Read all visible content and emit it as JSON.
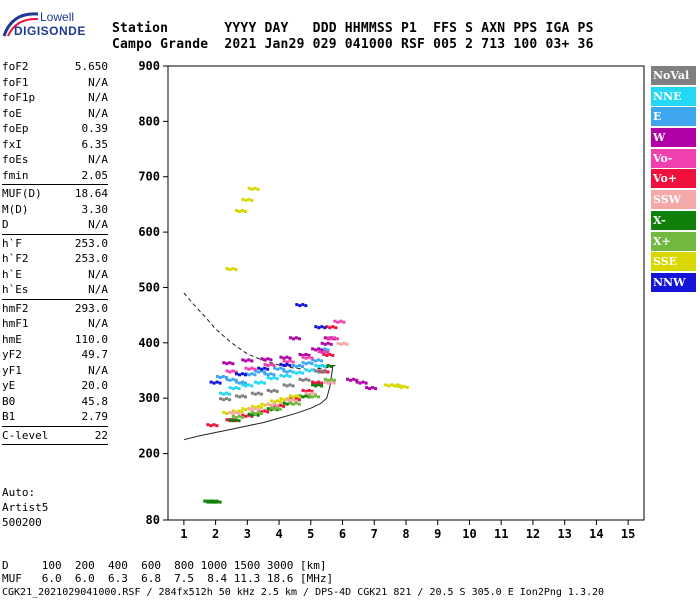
{
  "logo": {
    "line1": "Lowell",
    "line2": "DIGISONDE"
  },
  "header": {
    "line1": "Station       YYYY DAY   DDD HHMMSS P1  FFS S AXN PPS IGA PS",
    "line2": "Campo Grande  2021 Jan29 029 041000 RSF 005 2 713 100 03+ 36"
  },
  "params": [
    {
      "k": "foF2",
      "v": "5.650"
    },
    {
      "k": "foF1",
      "v": "N/A"
    },
    {
      "k": "foF1p",
      "v": "N/A"
    },
    {
      "k": "foE",
      "v": "N/A"
    },
    {
      "k": "foEp",
      "v": "0.39"
    },
    {
      "k": "fxI",
      "v": "6.35"
    },
    {
      "k": "foEs",
      "v": "N/A"
    },
    {
      "k": "fmin",
      "v": "2.05"
    }
  ],
  "params2": [
    {
      "k": "MUF(D)",
      "v": "18.64"
    },
    {
      "k": "M(D)",
      "v": "3.30"
    },
    {
      "k": "D",
      "v": "N/A"
    }
  ],
  "params3": [
    {
      "k": "h`F",
      "v": "253.0"
    },
    {
      "k": "h`F2",
      "v": "253.0"
    },
    {
      "k": "h`E",
      "v": "N/A"
    },
    {
      "k": "h`Es",
      "v": "N/A"
    }
  ],
  "params4": [
    {
      "k": "hmF2",
      "v": "293.0"
    },
    {
      "k": "hmF1",
      "v": "N/A"
    },
    {
      "k": "hmE",
      "v": "110.0"
    },
    {
      "k": "yF2",
      "v": "49.7"
    },
    {
      "k": "yF1",
      "v": "N/A"
    },
    {
      "k": "yE",
      "v": "20.0"
    },
    {
      "k": "B0",
      "v": "45.8"
    },
    {
      "k": "B1",
      "v": "2.79"
    }
  ],
  "params5": [
    {
      "k": "C-level",
      "v": "22"
    }
  ],
  "auto": {
    "l1": "Auto:",
    "l2": "Artist5",
    "l3": "500200"
  },
  "legend": [
    {
      "label": "NoVal",
      "color": "#808080"
    },
    {
      "label": "NNE",
      "color": "#22d8f4"
    },
    {
      "label": "E",
      "color": "#3ea6ef"
    },
    {
      "label": "W",
      "color": "#b000a8"
    },
    {
      "label": "Vo-",
      "color": "#f040b0"
    },
    {
      "label": "Vo+",
      "color": "#f0103c"
    },
    {
      "label": "SSW",
      "color": "#f4a8a8"
    },
    {
      "label": "X-",
      "color": "#10800a"
    },
    {
      "label": "X+",
      "color": "#70b840"
    },
    {
      "label": "SSE",
      "color": "#d8d800"
    },
    {
      "label": "NNW",
      "color": "#1414d8"
    }
  ],
  "footer": {
    "l1": "D     100  200  400  600  800 1000 1500 3000 [km]",
    "l2": "MUF   6.0  6.0  6.3  6.8  7.5  8.4 11.3 18.6 [MHz]",
    "l3": "CGK21_2021029041000.RSF / 284fx512h 50 kHz 2.5 km / DPS-4D CGK21 821 / 20.5 S 305.0 E Ion2Png 1.3.20"
  },
  "chart_data": {
    "type": "scatter",
    "title": "",
    "xlabel": "",
    "ylabel": "",
    "xlim": [
      0.5,
      15.5
    ],
    "ylim": [
      80,
      900
    ],
    "xticks": [
      "1",
      "2",
      "3",
      "4",
      "5",
      "6",
      "7",
      "8",
      "9",
      "10",
      "11",
      "12",
      "13",
      "14",
      "15"
    ],
    "yticks": [
      "80",
      "200",
      "300",
      "400",
      "500",
      "600",
      "700",
      "800",
      "900"
    ],
    "grid": false,
    "legend_position": "right",
    "series": [
      {
        "name": "Vo+",
        "color": "#f0103c",
        "x": [
          1.9,
          2.5,
          3.0,
          3.5,
          4.0,
          4.5,
          4.9,
          5.2,
          5.4,
          5.55,
          5.65
        ],
        "y": [
          253,
          262,
          270,
          278,
          288,
          300,
          315,
          330,
          350,
          380,
          430
        ]
      },
      {
        "name": "X-",
        "color": "#10800a",
        "x": [
          1.8,
          1.9,
          2.0,
          2.6,
          3.2,
          3.8,
          4.3,
          4.8,
          5.2,
          5.5
        ],
        "y": [
          115,
          115,
          115,
          262,
          272,
          282,
          292,
          305,
          325,
          360
        ]
      },
      {
        "name": "SSE",
        "color": "#d8d800",
        "x": [
          2.4,
          2.7,
          3.0,
          3.3,
          3.6,
          3.9,
          4.2,
          4.5,
          7.5,
          7.7,
          7.9,
          2.5,
          2.8,
          3.0,
          3.2
        ],
        "y": [
          275,
          278,
          282,
          286,
          290,
          296,
          300,
          305,
          325,
          325,
          322,
          535,
          640,
          660,
          680
        ]
      },
      {
        "name": "E",
        "color": "#3ea6ef",
        "x": [
          2.2,
          2.5,
          2.8,
          3.1,
          3.4,
          3.7,
          4.0,
          4.3,
          4.6,
          4.9,
          5.2,
          5.4
        ],
        "y": [
          340,
          335,
          330,
          345,
          350,
          345,
          355,
          350,
          360,
          365,
          370,
          390
        ]
      },
      {
        "name": "NNE",
        "color": "#22d8f4",
        "x": [
          2.3,
          2.6,
          3.0,
          3.4,
          3.8,
          4.2,
          4.6,
          5.0,
          5.3
        ],
        "y": [
          310,
          320,
          325,
          330,
          338,
          342,
          348,
          352,
          360
        ]
      },
      {
        "name": "W",
        "color": "#b000a8",
        "x": [
          2.4,
          3.0,
          3.6,
          4.2,
          4.8,
          5.2,
          5.5,
          5.6,
          6.3,
          6.6,
          6.9,
          4.5
        ],
        "y": [
          365,
          370,
          372,
          375,
          380,
          390,
          400,
          410,
          335,
          330,
          320,
          410
        ]
      },
      {
        "name": "Vo-",
        "color": "#f040b0",
        "x": [
          2.5,
          3.1,
          3.7,
          4.3,
          4.9,
          5.4,
          5.7,
          5.9
        ],
        "y": [
          350,
          355,
          362,
          368,
          375,
          385,
          410,
          440
        ]
      },
      {
        "name": "NoVal",
        "color": "#808080",
        "x": [
          2.3,
          2.8,
          3.3,
          3.8,
          4.3,
          4.8,
          5.3
        ],
        "y": [
          300,
          305,
          310,
          315,
          325,
          335,
          350
        ]
      },
      {
        "name": "SSW",
        "color": "#f4a8a8",
        "x": [
          2.6,
          3.2,
          3.8,
          4.4,
          5.0,
          5.6,
          6.0
        ],
        "y": [
          275,
          282,
          290,
          298,
          310,
          330,
          400
        ]
      },
      {
        "name": "X+",
        "color": "#70b840",
        "x": [
          2.7,
          3.3,
          3.9,
          4.5,
          5.1,
          5.6
        ],
        "y": [
          268,
          275,
          283,
          292,
          305,
          335
        ]
      },
      {
        "name": "NNW",
        "color": "#1414d8",
        "x": [
          2.0,
          2.8,
          3.5,
          4.2,
          4.7,
          5.3
        ],
        "y": [
          330,
          345,
          355,
          362,
          470,
          430
        ]
      }
    ],
    "curves": [
      {
        "name": "profile",
        "x": [
          1.0,
          1.5,
          2.0,
          2.5,
          3.0,
          3.5,
          4.0,
          4.5,
          5.0,
          5.3,
          5.5,
          5.6,
          5.7
        ],
        "y": [
          225,
          232,
          238,
          244,
          250,
          256,
          264,
          272,
          282,
          290,
          300,
          320,
          360
        ]
      },
      {
        "name": "dashed",
        "x": [
          1.0,
          1.3,
          1.7,
          2.0,
          2.5,
          3.0,
          3.5,
          4.0,
          4.5,
          5.0,
          5.5,
          5.8
        ],
        "y": [
          490,
          470,
          445,
          425,
          400,
          380,
          368,
          360,
          354,
          352,
          355,
          360
        ]
      }
    ]
  }
}
